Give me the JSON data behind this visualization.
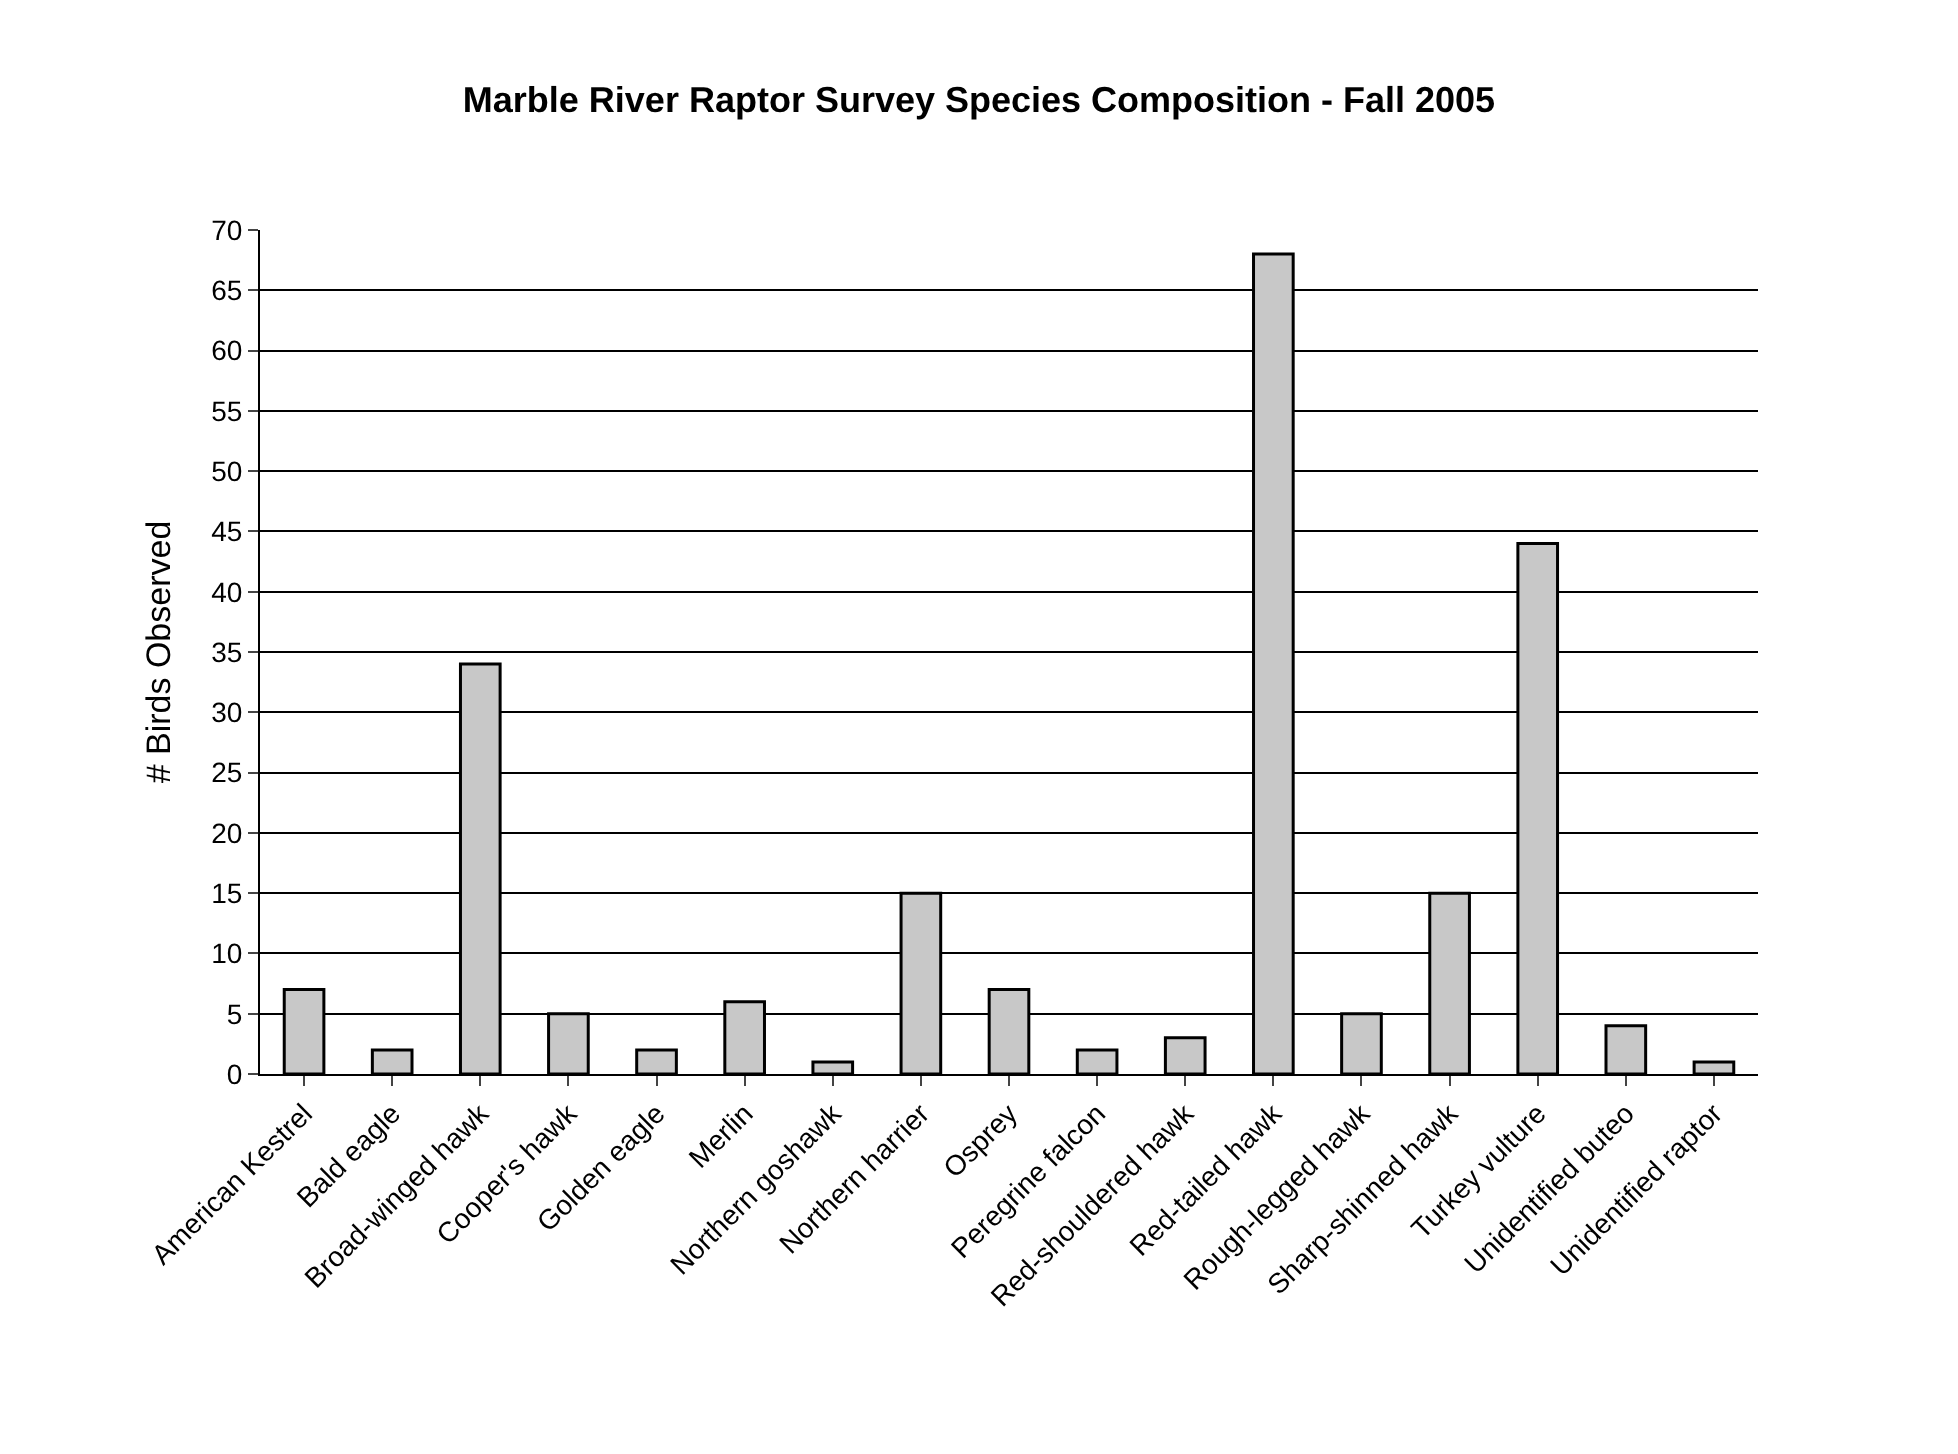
{
  "chart_data": {
    "type": "bar",
    "title": "Marble River Raptor Survey Species Composition - Fall 2005",
    "ylabel": "# Birds Observed",
    "categories": [
      "American Kestrel",
      "Bald eagle",
      "Broad-winged hawk",
      "Cooper's hawk",
      "Golden eagle",
      "Merlin",
      "Northern goshawk",
      "Northern harrier",
      "Osprey",
      "Peregrine falcon",
      "Red-shouldered hawk",
      "Red-tailed hawk",
      "Rough-legged hawk",
      "Sharp-shinned hawk",
      "Turkey vulture",
      "Unidentified buteo",
      "Unidentified raptor"
    ],
    "values": [
      7,
      2,
      34,
      5,
      2,
      6,
      1,
      15,
      7,
      2,
      3,
      68,
      5,
      15,
      44,
      4,
      1
    ],
    "color": "#c8c8c8",
    "ylim": [
      0,
      70
    ],
    "yticks": [
      0,
      5,
      10,
      15,
      20,
      25,
      30,
      35,
      40,
      45,
      50,
      55,
      60,
      65,
      70
    ],
    "grid": "y"
  }
}
